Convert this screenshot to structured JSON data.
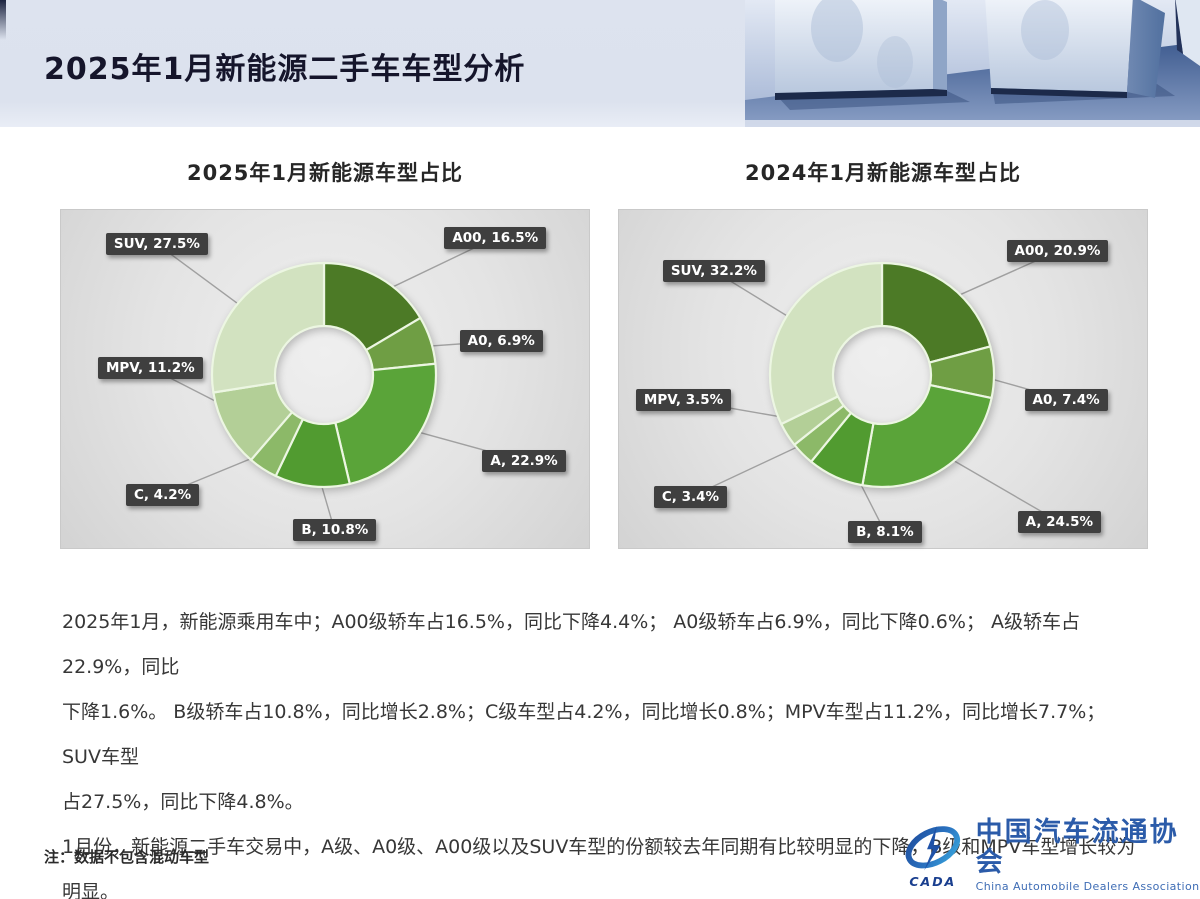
{
  "header": {
    "title": "2025年1月新能源二手车车型分析"
  },
  "chart_data": [
    {
      "type": "pie",
      "subtype": "donut",
      "title": "2025年1月新能源车型占比",
      "categories": [
        "A00",
        "A0",
        "A",
        "B",
        "C",
        "MPV",
        "SUV"
      ],
      "values": [
        16.5,
        6.9,
        22.9,
        10.8,
        4.2,
        11.2,
        27.5
      ],
      "colors": [
        "#4c7a26",
        "#6f9e44",
        "#5aa439",
        "#519b30",
        "#8cb968",
        "#b3cf97",
        "#d2e2c0"
      ],
      "start_angle_deg": 0,
      "direction": "clockwise",
      "legend": "none",
      "label_format": "{category}, {value}%",
      "label_pos_pct": [
        [
          72.6,
          5.0
        ],
        [
          75.5,
          35.6
        ],
        [
          79.8,
          70.9
        ],
        [
          44.0,
          91.5
        ],
        [
          12.3,
          81.2
        ],
        [
          7.0,
          43.5
        ],
        [
          8.5,
          6.8
        ]
      ]
    },
    {
      "type": "pie",
      "subtype": "donut",
      "title": "2024年1月新能源车型占比",
      "categories": [
        "A00",
        "A0",
        "A",
        "B",
        "C",
        "MPV",
        "SUV"
      ],
      "values": [
        20.9,
        7.4,
        24.5,
        8.1,
        3.4,
        3.5,
        32.2
      ],
      "colors": [
        "#4c7a26",
        "#6f9e44",
        "#5aa439",
        "#519b30",
        "#8cb968",
        "#b3cf97",
        "#d2e2c0"
      ],
      "start_angle_deg": 0,
      "direction": "clockwise",
      "legend": "none",
      "label_format": "{category}, {value}%",
      "label_pos_pct": [
        [
          73.4,
          8.8
        ],
        [
          76.8,
          52.9
        ],
        [
          75.5,
          89.1
        ],
        [
          43.4,
          92.1
        ],
        [
          6.6,
          81.8
        ],
        [
          3.2,
          52.9
        ],
        [
          8.3,
          14.7
        ]
      ]
    }
  ],
  "body": {
    "lines": [
      "2025年1月，新能源乘用车中；A00级轿车占16.5%，同比下降4.4%； A0级轿车占6.9%，同比下降0.6%； A级轿车占22.9%，同比",
      "下降1.6%。 B级轿车占10.8%，同比增长2.8%；C级车型占4.2%，同比增长0.8%；MPV车型占11.2%，同比增长7.7%； SUV车型",
      "占27.5%，同比下降4.8%。",
      "1月份，新能源二手车交易中，A级、A0级、A00级以及SUV车型的份额较去年同期有比较明显的下降，B级和MPV车型增长较为明显。"
    ]
  },
  "note": "注：数据不包含混动车型",
  "logo": {
    "acronym": "CADA",
    "name_cn": "中国汽车流通协会",
    "name_en": "China Automobile Dealers Association"
  },
  "style_colors": {
    "header_band": "#dde3ef",
    "title_text": "#15152b",
    "callout_bg": "#3f3f3f",
    "callout_text": "#ffffff",
    "leader_line": "#a0a0a0",
    "panel_bg": "#e4e4e4",
    "logo_blue": "#2b5ba9",
    "slice_border": "#ecf6e2"
  }
}
